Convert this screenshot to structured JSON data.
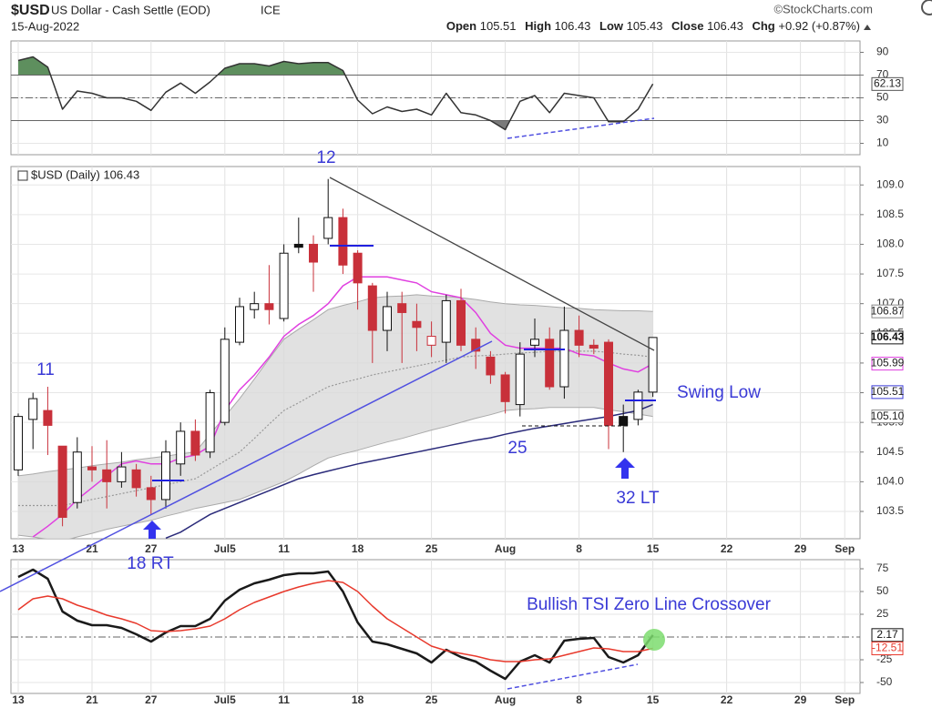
{
  "header": {
    "symbol": "$USD",
    "name": "US Dollar - Cash Settle (EOD)",
    "exchange": "ICE",
    "date": "15-Aug-2022",
    "source": "©StockCharts.com",
    "quote": [
      {
        "label": "Open",
        "value": 105.51
      },
      {
        "label": "High",
        "value": 106.43
      },
      {
        "label": "Low",
        "value": 105.43
      },
      {
        "label": "Close",
        "value": 106.43
      },
      {
        "label": "Chg",
        "value": "+0.92 (+0.87%)"
      }
    ]
  },
  "chart_data": [
    {
      "type": "line",
      "ylim": [
        0,
        100
      ],
      "yticks": [
        10,
        30,
        50,
        70,
        90
      ],
      "levels": [
        {
          "value": 70,
          "style": "solid",
          "fill": "above",
          "fill_color": "#5e8f5e"
        },
        {
          "value": 50,
          "style": "dashdot"
        },
        {
          "value": 30,
          "style": "solid",
          "fill": "below",
          "fill_color": "#7a7a7a"
        }
      ],
      "series": [
        {
          "color": "#333333",
          "values": [
            82.8,
            86,
            77,
            40,
            56,
            54,
            50,
            50,
            47,
            39,
            55,
            63,
            54,
            64,
            76,
            80,
            80,
            78,
            82,
            80,
            81,
            81,
            74,
            48,
            36,
            42,
            38,
            40,
            35,
            54,
            37,
            35,
            30,
            22,
            47,
            52,
            37,
            54,
            52,
            50,
            29,
            29,
            40,
            62.13,
            null,
            null,
            null,
            null,
            null,
            null,
            null,
            null,
            null,
            null,
            null,
            null,
            null
          ]
        }
      ],
      "end_labels": [
        {
          "value": 62.13,
          "color": "#555555",
          "text_color": "#222222"
        }
      ]
    },
    {
      "type": "candlestick",
      "title": "$USD (Daily) 106.43",
      "ylim": [
        103.04,
        109.31
      ],
      "yticks": [
        103.5,
        {
          "value": 104,
          "label": "104.0"
        },
        104.5,
        {
          "value": 105,
          "label": "105.0"
        },
        105.5,
        {
          "value": 106,
          "label": "106.0"
        },
        106.5,
        {
          "value": 107,
          "label": "107.0"
        },
        107.5,
        {
          "value": 108,
          "label": "108.0"
        },
        108.5,
        {
          "value": 109,
          "label": "109.0"
        }
      ],
      "grid": true,
      "up_color": "#ffffff",
      "down_color": "#c8303a",
      "edge_color": "#111111",
      "categories": [
        "13",
        null,
        null,
        null,
        null,
        "21",
        null,
        null,
        null,
        "27",
        null,
        null,
        null,
        null,
        "Jul5",
        null,
        null,
        null,
        "11",
        null,
        null,
        null,
        null,
        "18",
        null,
        null,
        null,
        null,
        "25",
        null,
        null,
        null,
        null,
        "Aug",
        null,
        null,
        null,
        null,
        "8",
        null,
        null,
        null,
        null,
        "15",
        null,
        null,
        null,
        null,
        "22",
        null,
        null,
        null,
        null,
        "29",
        null,
        null,
        "Sep"
      ],
      "open": [
        104.2,
        105.05,
        105.2,
        104.6,
        103.65,
        104.25,
        104.2,
        104.0,
        104.2,
        103.9,
        103.7,
        104.3,
        104.85,
        104.5,
        105.0,
        106.35,
        106.9,
        107.0,
        106.75,
        108.0,
        108.0,
        108.1,
        108.45,
        107.85,
        107.3,
        106.55,
        107.0,
        106.7,
        106.3,
        106.35,
        107.05,
        106.4,
        106.1,
        105.8,
        105.3,
        106.3,
        106.4,
        105.6,
        106.55,
        106.3,
        106.35,
        105.1,
        105.05,
        105.51,
        null,
        null,
        null,
        null,
        null,
        null,
        null,
        null,
        null,
        null,
        null,
        null,
        null
      ],
      "high": [
        105.15,
        105.5,
        105.6,
        104.6,
        104.75,
        104.6,
        104.7,
        104.5,
        104.3,
        104.1,
        104.7,
        105.0,
        105.05,
        105.55,
        106.6,
        107.1,
        107.2,
        107.65,
        108.0,
        108.45,
        108.15,
        109.1,
        108.6,
        107.9,
        107.35,
        107.2,
        107.2,
        107.0,
        106.7,
        107.15,
        107.25,
        106.6,
        106.2,
        105.85,
        106.35,
        106.75,
        106.6,
        106.95,
        106.8,
        106.4,
        106.4,
        105.3,
        105.55,
        106.43,
        null,
        null,
        null,
        null,
        null,
        null,
        null,
        null,
        null,
        null,
        null,
        null,
        null
      ],
      "low": [
        104.1,
        104.55,
        104.45,
        103.25,
        103.55,
        104.0,
        103.55,
        103.9,
        103.75,
        103.45,
        103.55,
        104.1,
        104.35,
        104.4,
        104.95,
        106.3,
        106.75,
        106.65,
        106.7,
        107.85,
        107.2,
        108.0,
        107.5,
        106.9,
        106.0,
        106.2,
        106.0,
        106.2,
        106.1,
        106.0,
        106.2,
        105.9,
        105.65,
        105.15,
        105.1,
        106.1,
        105.55,
        105.4,
        106.1,
        106.15,
        104.55,
        104.5,
        104.95,
        105.43,
        null,
        null,
        null,
        null,
        null,
        null,
        null,
        null,
        null,
        null,
        null,
        null,
        null
      ],
      "close": [
        105.1,
        105.4,
        104.95,
        103.4,
        104.5,
        104.2,
        104.0,
        104.25,
        103.9,
        103.7,
        104.5,
        104.85,
        104.45,
        105.5,
        106.4,
        106.95,
        107.0,
        106.9,
        107.85,
        107.95,
        107.7,
        108.45,
        107.65,
        107.35,
        106.55,
        106.95,
        106.85,
        106.6,
        106.45,
        107.05,
        106.3,
        106.2,
        105.8,
        105.35,
        106.15,
        106.4,
        105.6,
        106.55,
        106.3,
        106.25,
        104.95,
        104.95,
        105.51,
        106.43,
        null,
        null,
        null,
        null,
        null,
        null,
        null,
        null,
        null,
        null,
        null,
        null,
        null
      ],
      "bands": {
        "fill": "#d9d9d9",
        "edge": "#aaaaaa",
        "middle_color": "#999999",
        "upper": [
          104.1,
          104.13,
          104.17,
          104.2,
          104.23,
          104.27,
          104.3,
          104.33,
          104.37,
          104.4,
          104.43,
          104.47,
          104.5,
          104.8,
          105.1,
          105.4,
          105.73,
          106.07,
          106.4,
          106.57,
          106.73,
          106.9,
          106.97,
          107.03,
          107.1,
          107.12,
          107.13,
          107.15,
          107.13,
          107.12,
          107.1,
          107.07,
          107.03,
          107.0,
          106.98,
          106.97,
          106.95,
          106.93,
          106.92,
          106.9,
          106.89,
          106.88,
          106.88,
          106.87,
          null,
          null,
          null,
          null,
          null,
          null,
          null,
          null,
          null,
          null,
          null,
          null,
          null
        ],
        "middle": [
          103.6,
          103.6,
          103.6,
          103.6,
          103.65,
          103.7,
          103.75,
          103.8,
          103.85,
          103.9,
          103.95,
          104.0,
          104.05,
          104.2,
          104.35,
          104.5,
          104.73,
          104.97,
          105.2,
          105.33,
          105.47,
          105.6,
          105.67,
          105.73,
          105.8,
          105.85,
          105.9,
          105.95,
          106.0,
          106.05,
          106.1,
          106.12,
          106.13,
          106.15,
          106.17,
          106.18,
          106.2,
          106.2,
          106.2,
          106.2,
          106.18,
          106.15,
          106.13,
          106.1,
          null,
          null,
          null,
          null,
          null,
          null,
          null,
          null,
          null,
          null,
          null,
          null,
          null
        ],
        "lower": [
          103.1,
          103.07,
          103.03,
          103.0,
          103.07,
          103.13,
          103.2,
          103.25,
          103.3,
          103.35,
          103.42,
          103.48,
          103.55,
          103.6,
          103.65,
          103.7,
          103.8,
          103.9,
          104.0,
          104.13,
          104.27,
          104.4,
          104.47,
          104.53,
          104.6,
          104.67,
          104.73,
          104.8,
          104.87,
          104.93,
          105.0,
          105.07,
          105.13,
          105.2,
          105.22,
          105.23,
          105.25,
          105.25,
          105.25,
          105.25,
          105.21,
          105.18,
          105.14,
          105.1,
          null,
          null,
          null,
          null,
          null,
          null,
          null,
          null,
          null,
          null,
          null,
          null,
          null
        ]
      },
      "series": [
        {
          "color": "#e040e0",
          "values": [
            null,
            103.07,
            103.25,
            103.45,
            103.7,
            103.9,
            104.1,
            104.3,
            104.35,
            104.3,
            104.3,
            104.4,
            104.45,
            104.6,
            105.2,
            105.55,
            105.8,
            106.1,
            106.45,
            106.65,
            106.8,
            107.0,
            107.3,
            107.45,
            107.45,
            107.45,
            107.4,
            107.35,
            107.2,
            107.15,
            107.1,
            106.85,
            106.5,
            106.3,
            106.25,
            106.25,
            106.25,
            106.25,
            106.15,
            106.12,
            106.0,
            105.9,
            105.85,
            105.99,
            null,
            null,
            null,
            null,
            null,
            null,
            null,
            null,
            null,
            null,
            null,
            null,
            null
          ]
        },
        {
          "color": "#2a2a7a",
          "values": [
            null,
            null,
            null,
            null,
            null,
            null,
            null,
            null,
            null,
            null,
            103.05,
            103.15,
            103.3,
            103.45,
            103.55,
            103.65,
            103.75,
            103.85,
            103.95,
            104.05,
            104.12,
            104.18,
            104.24,
            104.3,
            104.35,
            104.4,
            104.45,
            104.5,
            104.55,
            104.6,
            104.65,
            104.7,
            104.74,
            104.8,
            104.85,
            104.9,
            104.94,
            104.98,
            105.02,
            105.06,
            105.1,
            105.15,
            105.2,
            105.3,
            null,
            null,
            null,
            null,
            null,
            null,
            null,
            null,
            null,
            null,
            null,
            null,
            null
          ]
        }
      ],
      "end_labels": [
        {
          "value": 106.87,
          "color": "#888888",
          "text_color": "#222222"
        },
        {
          "value": 106.43,
          "color": "#111111",
          "text_color": "#111111"
        },
        {
          "value": 105.99,
          "color": "#e040e0",
          "text_color": "#222222"
        },
        {
          "value": 105.51,
          "color": "#3a3ad6",
          "text_color": "#222222"
        },
        {
          "value": 105.1,
          "label": "105.10",
          "color": "#888888",
          "text_color": "#222222"
        }
      ],
      "annotations": [
        {
          "text": "11"
        },
        {
          "text": "12"
        },
        {
          "text": "25"
        },
        {
          "text": "32 LT"
        },
        {
          "text": "18 RT"
        },
        {
          "text": "Swing Low"
        }
      ]
    },
    {
      "type": "line",
      "ylim": [
        -62,
        85
      ],
      "yticks": [
        75,
        50,
        25,
        -25,
        -50
      ],
      "levels": [
        {
          "value": 0,
          "style": "dashdot"
        }
      ],
      "categories": [
        "13",
        null,
        null,
        null,
        null,
        "21",
        null,
        null,
        null,
        "27",
        null,
        null,
        null,
        null,
        "Jul5",
        null,
        null,
        null,
        "11",
        null,
        null,
        null,
        null,
        "18",
        null,
        null,
        null,
        null,
        "25",
        null,
        null,
        null,
        null,
        "Aug",
        null,
        null,
        null,
        null,
        "8",
        null,
        null,
        null,
        null,
        "15",
        null,
        null,
        null,
        null,
        "22",
        null,
        null,
        null,
        null,
        "29",
        null,
        null,
        "Sep"
      ],
      "series": [
        {
          "color": "#1a1a1a",
          "width": 2.5,
          "values": [
            66,
            74,
            64,
            28,
            18,
            13,
            13,
            10,
            3,
            -5,
            5,
            12,
            12,
            20,
            40,
            52,
            59,
            63,
            68,
            70,
            70,
            72,
            50,
            16,
            -5,
            -8,
            -13,
            -18,
            -28,
            -14,
            -22,
            -27,
            -37,
            -46,
            -27,
            -20,
            -28,
            -4,
            -2,
            -1,
            -22,
            -28,
            -20,
            2.17,
            null,
            null,
            null,
            null,
            null,
            null,
            null,
            null,
            null,
            null,
            null,
            null,
            null
          ]
        },
        {
          "color": "#e8392c",
          "width": 1.5,
          "values": [
            30,
            42,
            45,
            42,
            35,
            30,
            24,
            20,
            15,
            7,
            6,
            7,
            9,
            12,
            20,
            30,
            38,
            44,
            50,
            55,
            59,
            62,
            60,
            50,
            34,
            20,
            10,
            0,
            -10,
            -15,
            -18,
            -21,
            -25,
            -27,
            -27,
            -25,
            -24,
            -20,
            -16,
            -12,
            -13,
            -16,
            -16,
            -12.51,
            null,
            null,
            null,
            null,
            null,
            null,
            null,
            null,
            null,
            null,
            null,
            null,
            null
          ]
        }
      ],
      "end_labels": [
        {
          "value": 2.17,
          "color": "#111111",
          "text_color": "#111111"
        },
        {
          "value": -12.51,
          "color": "#e8392c",
          "text_color": "#e8392c"
        }
      ],
      "annotations": [
        {
          "text": "Bullish TSI Zero Line Crossover"
        }
      ]
    }
  ]
}
